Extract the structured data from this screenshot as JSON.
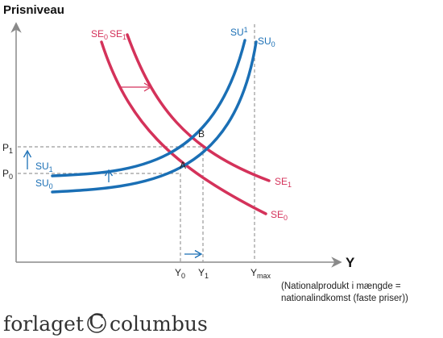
{
  "title": "Prisniveau",
  "x_axis_label": "Y",
  "x_axis_note_line1": "(Nationalprodukt i mængde =",
  "x_axis_note_line2": "nationalindkomst (faste priser))",
  "publisher": {
    "word1": "forlaget",
    "symbol": "C",
    "word2": "columbus"
  },
  "colors": {
    "demand_curves": "#d4325a",
    "supply_curves": "#1a6fb5",
    "axes": "#8a8a8a",
    "guides": "#9a9a9a"
  },
  "curves": {
    "se0": {
      "base": "SE",
      "sub": "0"
    },
    "se1": {
      "base": "SE",
      "sub": "1"
    },
    "su0": {
      "base": "SU",
      "sub": "0"
    },
    "su1": {
      "base": "SU",
      "sub": "1"
    }
  },
  "points": {
    "a": "A",
    "b": "B"
  },
  "y_ticks": {
    "p0": {
      "base": "P",
      "sub": "0"
    },
    "p1": {
      "base": "P",
      "sub": "1"
    }
  },
  "x_ticks": {
    "y0": {
      "base": "Y",
      "sub": "0"
    },
    "y1": {
      "base": "Y",
      "sub": "1"
    },
    "ymax": {
      "base": "Y",
      "sub": "max"
    }
  },
  "arrows": [
    "demand-shift-right",
    "supply-shift-up",
    "price-increase",
    "output-increase"
  ]
}
